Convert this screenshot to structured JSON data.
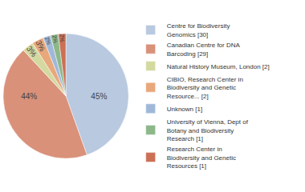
{
  "chart_data": {
    "type": "pie",
    "categories": [
      "Centre for Biodiversity\nGenomics [30]",
      "Canadian Centre for DNA\nBarcoding [29]",
      "Natural History Museum, London [2]",
      "CIBIO, Research Center in\nBiodiversity and Genetic\nResource... [2]",
      "Unknown [1]",
      "University of Vienna, Dept of\nBotany and Biodiversity\nResearch [1]",
      "Research Center in\nBiodiversity and Genetic\nResources [1]"
    ],
    "values": [
      45,
      44,
      3,
      3,
      2,
      2,
      2
    ],
    "value_labels": [
      "45%",
      "44%",
      "3%",
      "3%",
      "2%",
      "2%",
      "2%"
    ],
    "colors": [
      "#b8c9e0",
      "#d9917a",
      "#d4d9a0",
      "#e8a87c",
      "#a0b8d8",
      "#8db88a",
      "#cc7055"
    ],
    "data_labels": true,
    "legend": "right"
  }
}
